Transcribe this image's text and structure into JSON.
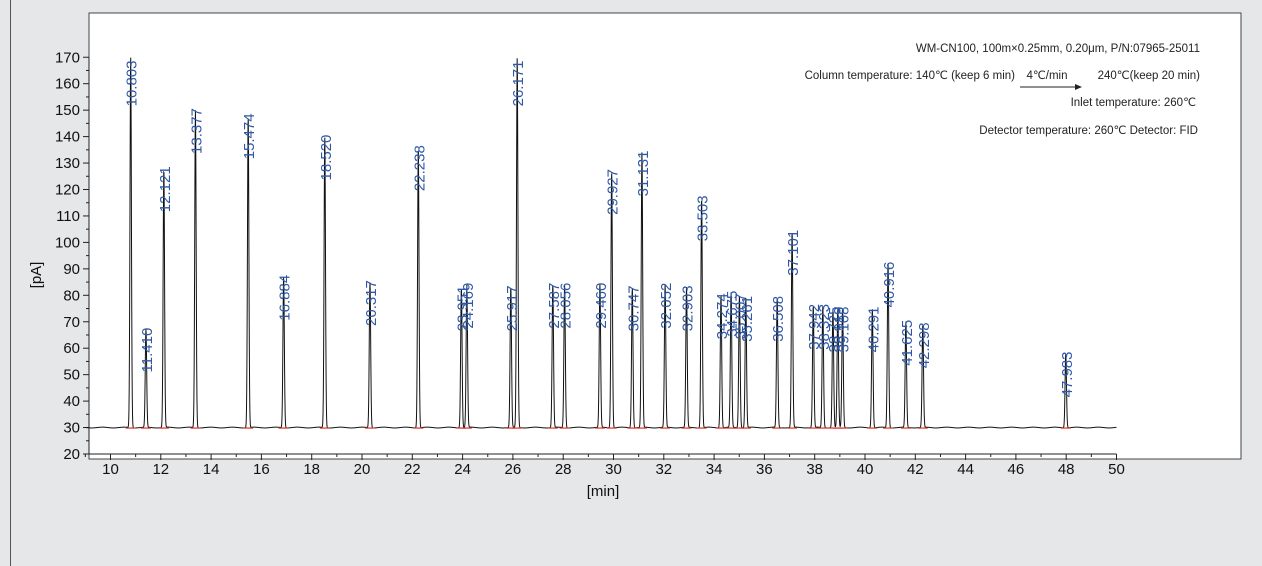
{
  "chart_data": {
    "type": "line",
    "xlabel": "[min]",
    "ylabel": "[pA]",
    "xlim": [
      9,
      50
    ],
    "ylim": [
      20,
      170
    ],
    "x_ticks": [
      10,
      12,
      14,
      16,
      18,
      20,
      22,
      24,
      26,
      28,
      30,
      32,
      34,
      36,
      38,
      40,
      42,
      44,
      46,
      48,
      50
    ],
    "y_ticks": [
      20,
      30,
      40,
      50,
      60,
      70,
      80,
      90,
      100,
      110,
      120,
      130,
      140,
      150,
      160,
      170
    ],
    "baseline": 30,
    "peaks": [
      {
        "rt": "10.803",
        "height": 170
      },
      {
        "rt": "11.410",
        "height": 67
      },
      {
        "rt": "12.121",
        "height": 128
      },
      {
        "rt": "13.377",
        "height": 150
      },
      {
        "rt": "15.474",
        "height": 148
      },
      {
        "rt": "16.884",
        "height": 87
      },
      {
        "rt": "18.520",
        "height": 140
      },
      {
        "rt": "20.317",
        "height": 85
      },
      {
        "rt": "22.238",
        "height": 136
      },
      {
        "rt": "23.951",
        "height": 83
      },
      {
        "rt": "24.169",
        "height": 84
      },
      {
        "rt": "25.917",
        "height": 83
      },
      {
        "rt": "26.171",
        "height": 170
      },
      {
        "rt": "27.587",
        "height": 84
      },
      {
        "rt": "28.056",
        "height": 84
      },
      {
        "rt": "29.460",
        "height": 84
      },
      {
        "rt": "29.927",
        "height": 127
      },
      {
        "rt": "30.747",
        "height": 83
      },
      {
        "rt": "31.131",
        "height": 134
      },
      {
        "rt": "32.052",
        "height": 84
      },
      {
        "rt": "32.903",
        "height": 83
      },
      {
        "rt": "33.503",
        "height": 117
      },
      {
        "rt": "34.274",
        "height": 80
      },
      {
        "rt": "34.675",
        "height": 81
      },
      {
        "rt": "35.007",
        "height": 80
      },
      {
        "rt": "35.261",
        "height": 79
      },
      {
        "rt": "36.508",
        "height": 79
      },
      {
        "rt": "37.101",
        "height": 104
      },
      {
        "rt": "37.942",
        "height": 76
      },
      {
        "rt": "38.323",
        "height": 76
      },
      {
        "rt": "38.725",
        "height": 75
      },
      {
        "rt": "38.919",
        "height": 75
      },
      {
        "rt": "39.108",
        "height": 75
      },
      {
        "rt": "40.291",
        "height": 75
      },
      {
        "rt": "40.916",
        "height": 92
      },
      {
        "rt": "41.625",
        "height": 70
      },
      {
        "rt": "42.298",
        "height": 69
      },
      {
        "rt": "47.983",
        "height": 58
      }
    ]
  },
  "annotations": {
    "column": "WM-CN100, 100m×0.25mm, 0.20μm, P/N:07965-25011",
    "oven_start": "Column temperature: 140℃ (keep 6 min)",
    "oven_rate": "4℃/min",
    "oven_end": "240℃(keep 20 min)",
    "inlet": "Inlet temperature: 260℃",
    "detector": "Detector temperature: 260℃  Detector: FID"
  },
  "colors": {
    "trace": "#111111",
    "peak_label": "#2e58a6",
    "baseline_marker": "#d9342b",
    "plot_bg": "#ffffff",
    "page_bg": "#e6e7e8"
  }
}
